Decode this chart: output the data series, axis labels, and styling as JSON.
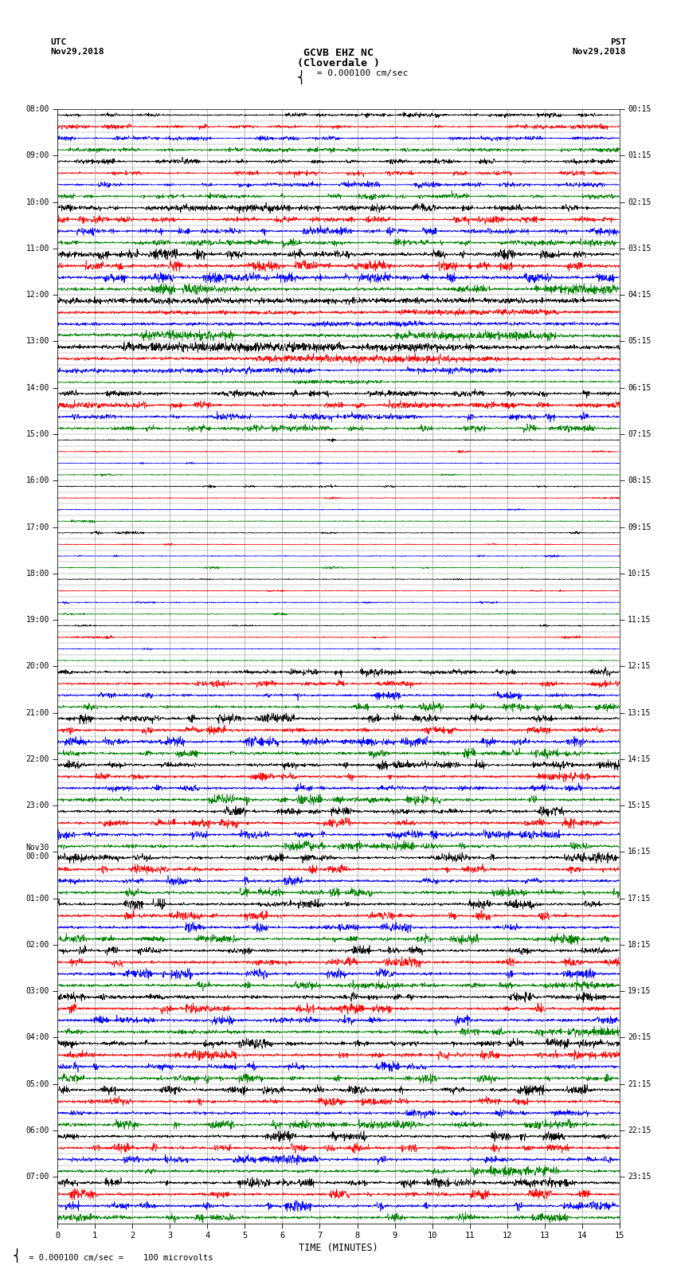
{
  "title_line1": "GCVB EHZ NC",
  "title_line2": "(Cloverdale )",
  "scale_text": " = 0.000100 cm/sec",
  "footer_text": " = 0.000100 cm/sec =    100 microvolts",
  "utc_label": "UTC\nNov29,2018",
  "pst_label": "PST\nNov29,2018",
  "xlabel": "TIME (MINUTES)",
  "time_min": 0,
  "time_max": 15,
  "xticks": [
    0,
    1,
    2,
    3,
    4,
    5,
    6,
    7,
    8,
    9,
    10,
    11,
    12,
    13,
    14,
    15
  ],
  "n_rows": 96,
  "colors_cycle": [
    "black",
    "red",
    "blue",
    "green"
  ],
  "bg_color": "white",
  "grid_color": "#888888",
  "line_width": 0.5,
  "left_times_utc": [
    "08:00",
    "",
    "",
    "",
    "09:00",
    "",
    "",
    "",
    "10:00",
    "",
    "",
    "",
    "11:00",
    "",
    "",
    "",
    "12:00",
    "",
    "",
    "",
    "13:00",
    "",
    "",
    "",
    "14:00",
    "",
    "",
    "",
    "15:00",
    "",
    "",
    "",
    "16:00",
    "",
    "",
    "",
    "17:00",
    "",
    "",
    "",
    "18:00",
    "",
    "",
    "",
    "19:00",
    "",
    "",
    "",
    "20:00",
    "",
    "",
    "",
    "21:00",
    "",
    "",
    "",
    "22:00",
    "",
    "",
    "",
    "23:00",
    "",
    "",
    "",
    "Nov30\n00:00",
    "",
    "",
    "",
    "01:00",
    "",
    "",
    "",
    "02:00",
    "",
    "",
    "",
    "03:00",
    "",
    "",
    "",
    "04:00",
    "",
    "",
    "",
    "05:00",
    "",
    "",
    "",
    "06:00",
    "",
    "",
    "",
    "07:00",
    "",
    "",
    ""
  ],
  "right_times_pst": [
    "00:15",
    "",
    "",
    "",
    "01:15",
    "",
    "",
    "",
    "02:15",
    "",
    "",
    "",
    "03:15",
    "",
    "",
    "",
    "04:15",
    "",
    "",
    "",
    "05:15",
    "",
    "",
    "",
    "06:15",
    "",
    "",
    "",
    "07:15",
    "",
    "",
    "",
    "08:15",
    "",
    "",
    "",
    "09:15",
    "",
    "",
    "",
    "10:15",
    "",
    "",
    "",
    "11:15",
    "",
    "",
    "",
    "12:15",
    "",
    "",
    "",
    "13:15",
    "",
    "",
    "",
    "14:15",
    "",
    "",
    "",
    "15:15",
    "",
    "",
    "",
    "16:15",
    "",
    "",
    "",
    "17:15",
    "",
    "",
    "",
    "18:15",
    "",
    "",
    "",
    "19:15",
    "",
    "",
    "",
    "20:15",
    "",
    "",
    "",
    "21:15",
    "",
    "",
    "",
    "22:15",
    "",
    "",
    "",
    "23:15",
    "",
    "",
    ""
  ]
}
